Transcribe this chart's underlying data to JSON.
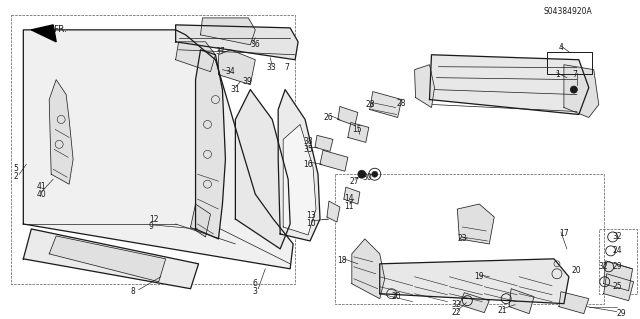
{
  "bg_color": "#ffffff",
  "line_color": "#1a1a1a",
  "diagram_code": "S04384920A",
  "fig_width": 6.4,
  "fig_height": 3.19,
  "dpi": 100,
  "lw_main": 0.9,
  "lw_thin": 0.5,
  "lw_detail": 0.4,
  "part_color": "#f5f5f5",
  "shadow_color": "#cccccc"
}
